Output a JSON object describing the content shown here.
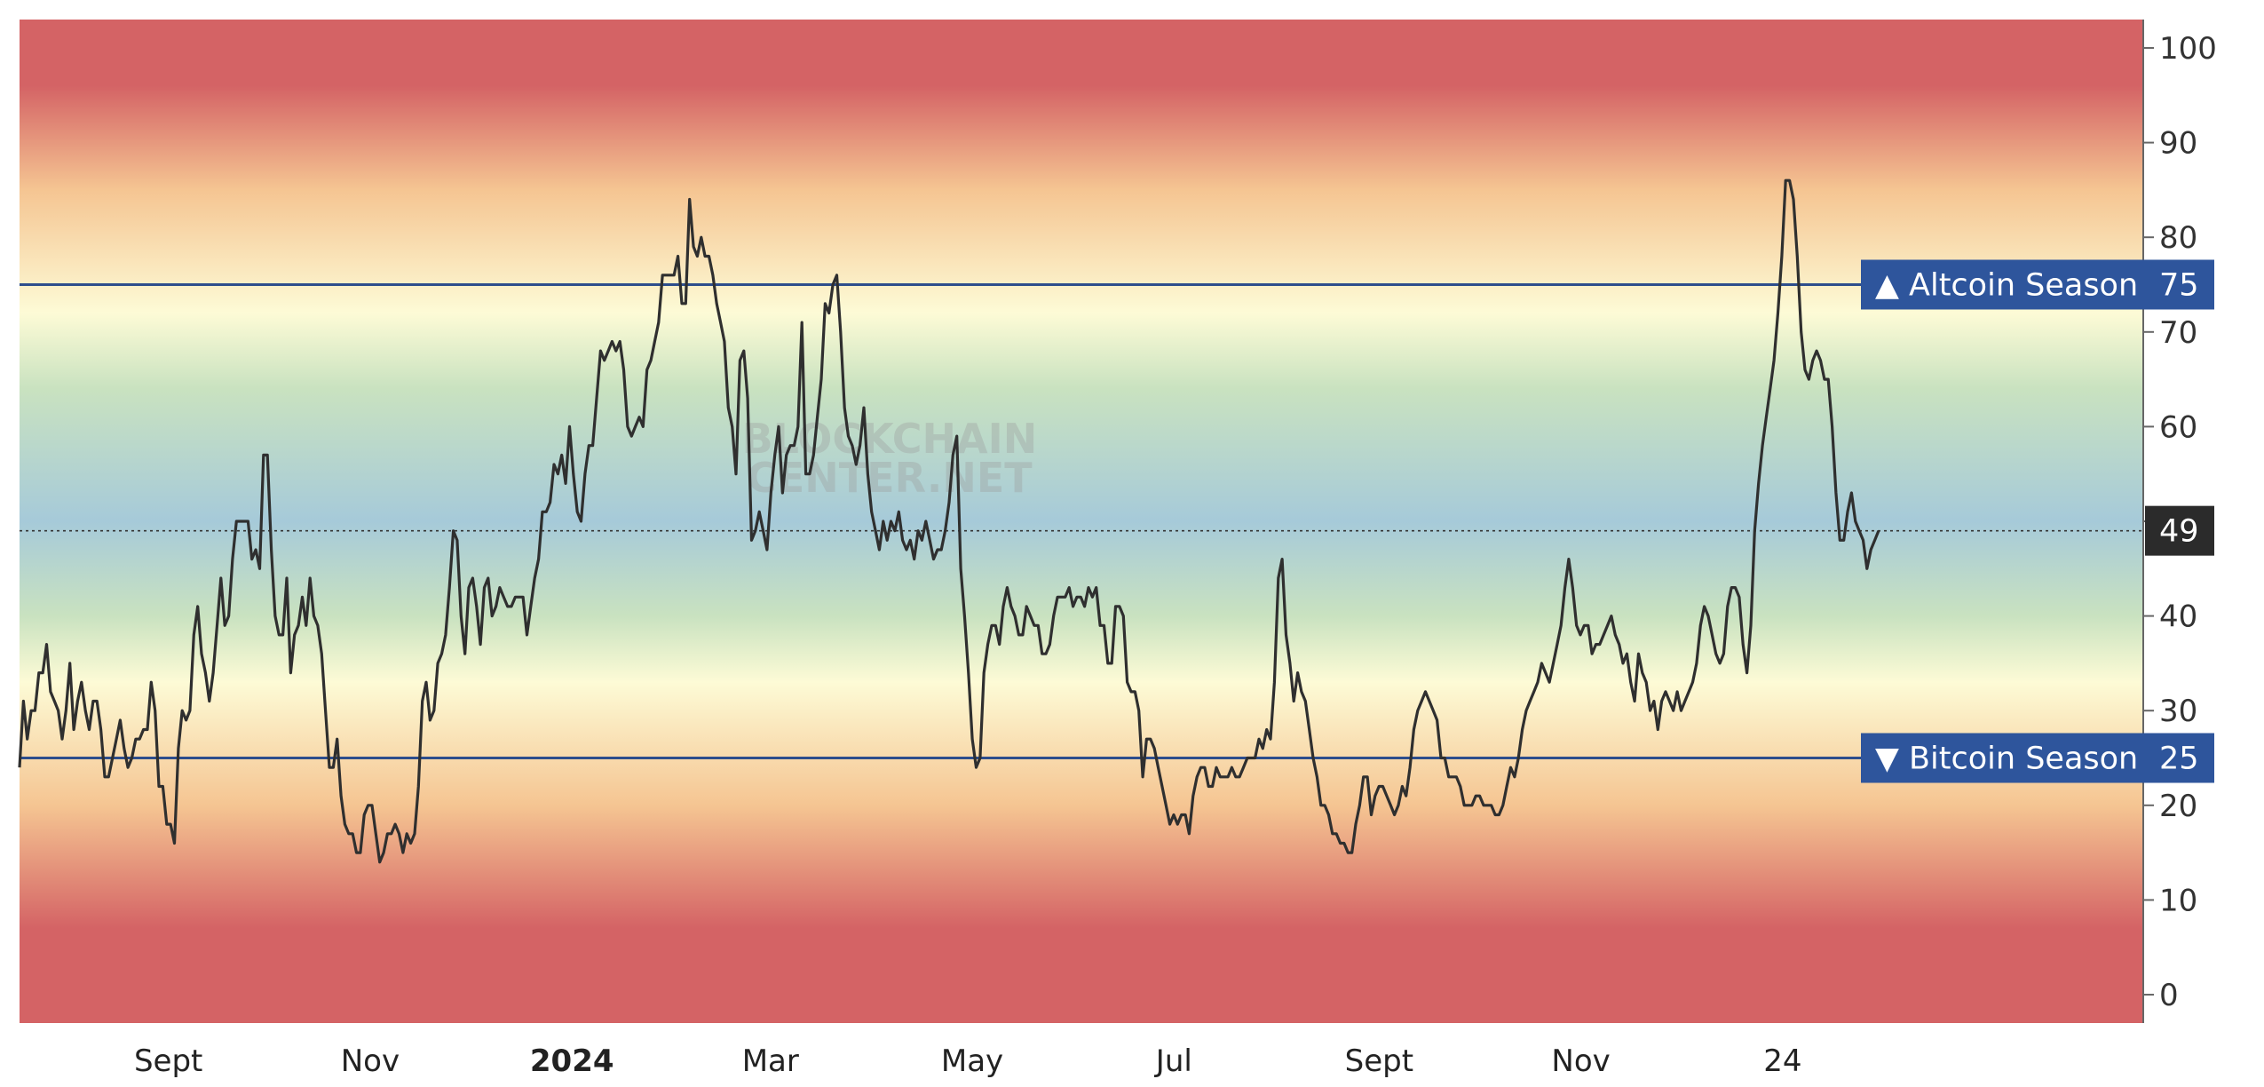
{
  "chart_data": {
    "type": "line",
    "title": "",
    "xlabel": "",
    "ylabel": "",
    "ylim": [
      -3,
      103
    ],
    "yticks": [
      0,
      10,
      20,
      30,
      40,
      50,
      60,
      70,
      80,
      90,
      100
    ],
    "grid": false,
    "x_start": "2023-07-18",
    "x_end": "2025-01-30",
    "x_axis_end": "2025-04-20",
    "xticks": [
      {
        "label": "Sept",
        "date": "2023-09-01",
        "bold": false
      },
      {
        "label": "Nov",
        "date": "2023-11-01",
        "bold": false
      },
      {
        "label": "2024",
        "date": "2024-01-01",
        "bold": true
      },
      {
        "label": "Mar",
        "date": "2024-03-01",
        "bold": false
      },
      {
        "label": "May",
        "date": "2024-05-01",
        "bold": false
      },
      {
        "label": "Jul",
        "date": "2024-07-01",
        "bold": false
      },
      {
        "label": "Sept",
        "date": "2024-09-01",
        "bold": false
      },
      {
        "label": "Nov",
        "date": "2024-11-01",
        "bold": false
      },
      {
        "label": "24",
        "date": "2025-01-01",
        "bold": false
      }
    ],
    "series": [
      {
        "values": [
          24,
          31,
          27,
          30,
          30,
          34,
          34,
          37,
          32,
          31,
          30,
          27,
          30,
          35,
          28,
          31,
          33,
          30,
          28,
          31,
          31,
          28,
          23,
          23,
          25,
          27,
          29,
          26,
          24,
          25,
          27,
          27,
          28,
          28,
          33,
          30,
          22,
          22,
          18,
          18,
          16,
          26,
          30,
          29,
          30,
          38,
          41,
          36,
          34,
          31,
          34,
          39,
          44,
          39,
          40,
          46,
          50,
          50,
          50,
          50,
          46,
          47,
          45,
          57,
          57,
          47,
          40,
          38,
          38,
          44,
          34,
          38,
          39,
          42,
          39,
          44,
          40,
          39,
          36,
          30,
          24,
          24,
          27,
          21,
          18,
          17,
          17,
          15,
          15,
          19,
          20,
          20,
          17,
          14,
          15,
          17,
          17,
          18,
          17,
          15,
          17,
          16,
          17,
          22,
          31,
          33,
          29,
          30,
          35,
          36,
          38,
          43,
          49,
          48,
          40,
          36,
          43,
          44,
          41,
          37,
          43,
          44,
          40,
          41,
          43,
          42,
          41,
          41,
          42,
          42,
          42,
          38,
          41,
          44,
          46,
          51,
          51,
          52,
          56,
          55,
          57,
          54,
          60,
          55,
          51,
          50,
          55,
          58,
          58,
          63,
          68,
          67,
          68,
          69,
          68,
          69,
          66,
          60,
          59,
          60,
          61,
          60,
          66,
          67,
          69,
          71,
          76,
          76,
          76,
          76,
          78,
          73,
          73,
          84,
          79,
          78,
          80,
          78,
          78,
          76,
          73,
          71,
          69,
          62,
          60,
          55,
          67,
          68,
          63,
          48,
          49,
          51,
          49,
          47,
          53,
          57,
          60,
          53,
          57,
          58,
          58,
          60,
          71,
          55,
          55,
          57,
          61,
          65,
          73,
          72,
          75,
          76,
          70,
          62,
          59,
          58,
          56,
          58,
          62,
          55,
          51,
          49,
          47,
          50,
          48,
          50,
          49,
          51,
          48,
          47,
          48,
          46,
          49,
          48,
          50,
          48,
          46,
          47,
          47,
          49,
          52,
          57,
          59,
          45,
          40,
          34,
          27,
          24,
          25,
          34,
          37,
          39,
          39,
          37,
          41,
          43,
          41,
          40,
          38,
          38,
          41,
          40,
          39,
          39,
          36,
          36,
          37,
          40,
          42,
          42,
          42,
          43,
          41,
          42,
          42,
          41,
          43,
          42,
          43,
          39,
          39,
          35,
          35,
          41,
          41,
          40,
          33,
          32,
          32,
          30,
          23,
          27,
          27,
          26,
          24,
          22,
          20,
          18,
          19,
          18,
          19,
          19,
          17,
          21,
          23,
          24,
          24,
          22,
          22,
          24,
          23,
          23,
          23,
          24,
          23,
          23,
          24,
          25,
          25,
          25,
          27,
          26,
          28,
          27,
          33,
          44,
          46,
          38,
          35,
          31,
          34,
          32,
          31,
          28,
          25,
          23,
          20,
          20,
          19,
          17,
          17,
          16,
          16,
          15,
          15,
          18,
          20,
          23,
          23,
          19,
          21,
          22,
          22,
          21,
          20,
          19,
          20,
          22,
          21,
          24,
          28,
          30,
          31,
          32,
          31,
          30,
          29,
          25,
          25,
          23,
          23,
          23,
          22,
          20,
          20,
          20,
          21,
          21,
          20,
          20,
          20,
          19,
          19,
          20,
          22,
          24,
          23,
          25,
          28,
          30,
          31,
          32,
          33,
          35,
          34,
          33,
          35,
          37,
          39,
          43,
          46,
          43,
          39,
          38,
          39,
          39,
          36,
          37,
          37,
          38,
          39,
          40,
          38,
          37,
          35,
          36,
          33,
          31,
          36,
          34,
          33,
          30,
          31,
          28,
          31,
          32,
          31,
          30,
          32,
          30,
          31,
          32,
          33,
          35,
          39,
          41,
          40,
          38,
          36,
          35,
          36,
          41,
          43,
          43,
          42,
          37,
          34,
          39,
          49,
          54,
          58,
          61,
          64,
          67,
          72,
          78,
          86,
          86,
          84,
          78,
          70,
          66,
          65,
          67,
          68,
          67,
          65,
          65,
          60,
          53,
          48,
          48,
          51,
          53,
          50,
          49,
          48,
          45,
          47,
          48,
          49
        ]
      }
    ],
    "reference_lines": [
      {
        "value": 75,
        "label": "▲ Altcoin Season",
        "value_label": "75"
      },
      {
        "value": 25,
        "label": "▼ Bitcoin Season",
        "value_label": "25"
      }
    ],
    "current_value": 49,
    "current_value_label": "49",
    "watermark": [
      "BLOCKCHAIN",
      "CENTER.NET"
    ],
    "colors": {
      "line": "#2f2f2f",
      "reference_line": "#2d4d8c",
      "badge": "#2e559c",
      "current_badge": "#2b2b2b",
      "band_red": "#d46365",
      "band_orange": "#f5c592",
      "band_yellow": "#fdfbd6",
      "band_green": "#c9e2c0",
      "band_blue": "#a6cad9"
    }
  }
}
